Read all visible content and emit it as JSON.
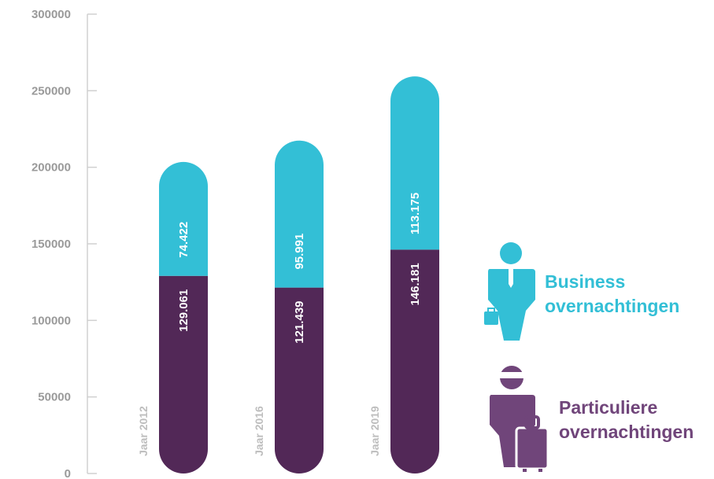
{
  "chart_data": {
    "type": "bar",
    "stacked": true,
    "ylim": [
      0,
      300000
    ],
    "yticks": [
      "300000",
      "250000",
      "200000",
      "150000",
      "100000",
      "50000",
      "0"
    ],
    "categories": [
      "Jaar 2012",
      "Jaar 2016",
      "Jaar 2019"
    ],
    "series": [
      {
        "name": "Particuliere overnachtingen",
        "color": "#522857",
        "values": [
          129061,
          121439,
          146181
        ],
        "labels": [
          "129.061",
          "121.439",
          "146.181"
        ]
      },
      {
        "name": "Business overnachtingen",
        "color": "#33bfd6",
        "values": [
          74422,
          95991,
          113175
        ],
        "labels": [
          "74.422",
          "95.991",
          "113.175"
        ]
      }
    ],
    "legend_position": "right",
    "grid": false
  },
  "legend": {
    "business_line1": "Business",
    "business_line2": "overnachtingen",
    "private_line1": "Particuliere",
    "private_line2": "overnachtingen",
    "business_icon": "businessman-icon",
    "private_icon": "traveler-with-suitcase-icon"
  }
}
